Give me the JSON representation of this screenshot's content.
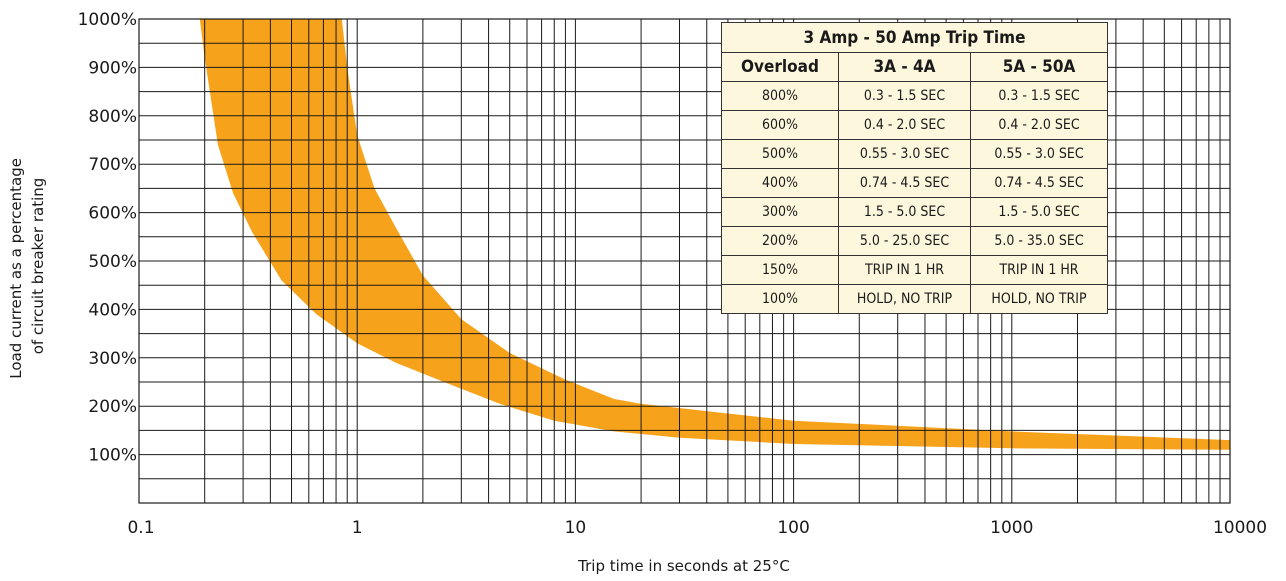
{
  "chart_data": {
    "type": "area",
    "xscale": "log",
    "xlim": [
      0.1,
      10000
    ],
    "ylim": [
      0,
      1000
    ],
    "grid": true,
    "xlabel": "Trip time in seconds at 25°C",
    "ylabel": "Load current as a percentage of circuit breaker rating",
    "ylabel_lines": [
      "Load current as a percentage",
      "of circuit breaker rating"
    ],
    "x_ticks": [
      0.1,
      1,
      10,
      100,
      1000,
      10000
    ],
    "x_tick_labels": [
      "0.1",
      "1",
      "10",
      "100",
      "1000",
      "10000"
    ],
    "y_ticks": [
      100,
      200,
      300,
      400,
      500,
      600,
      700,
      800,
      900,
      1000
    ],
    "y_tick_labels": [
      "100%",
      "200%",
      "300%",
      "400%",
      "500%",
      "600%",
      "700%",
      "800%",
      "900%",
      "1000%"
    ],
    "series": [
      {
        "color": "#f7a21b",
        "lower": {
          "x": [
            0.19,
            0.2,
            0.23,
            0.27,
            0.33,
            0.45,
            0.65,
            1.0,
            1.5,
            2.5,
            4.5,
            8,
            15,
            30,
            100,
            1000,
            10000
          ],
          "y": [
            1000,
            920,
            740,
            640,
            560,
            460,
            390,
            330,
            290,
            250,
            205,
            170,
            148,
            135,
            122,
            113,
            110
          ]
        },
        "upper": {
          "x": [
            0.85,
            0.9,
            1.0,
            1.2,
            1.5,
            2.0,
            3.0,
            5.0,
            9,
            15,
            20,
            50,
            100,
            1000,
            10000
          ],
          "y": [
            1000,
            900,
            760,
            650,
            570,
            470,
            380,
            310,
            255,
            215,
            205,
            185,
            170,
            148,
            130
          ]
        }
      }
    ]
  },
  "table": {
    "title": "3 Amp - 50 Amp Trip Time",
    "headers": [
      "Overload",
      "3A - 4A",
      "5A - 50A"
    ],
    "rows": [
      [
        "800%",
        "0.3 - 1.5 SEC",
        "0.3 - 1.5 SEC"
      ],
      [
        "600%",
        "0.4 - 2.0 SEC",
        "0.4 - 2.0 SEC"
      ],
      [
        "500%",
        "0.55 - 3.0 SEC",
        "0.55 - 3.0 SEC"
      ],
      [
        "400%",
        "0.74 - 4.5 SEC",
        "0.74 - 4.5 SEC"
      ],
      [
        "300%",
        "1.5 - 5.0 SEC",
        "1.5 - 5.0 SEC"
      ],
      [
        "200%",
        "5.0 - 25.0 SEC",
        "5.0 - 35.0 SEC"
      ],
      [
        "150%",
        "TRIP IN 1 HR",
        "TRIP IN 1 HR"
      ],
      [
        "100%",
        "HOLD, NO TRIP",
        "HOLD, NO TRIP"
      ]
    ]
  }
}
